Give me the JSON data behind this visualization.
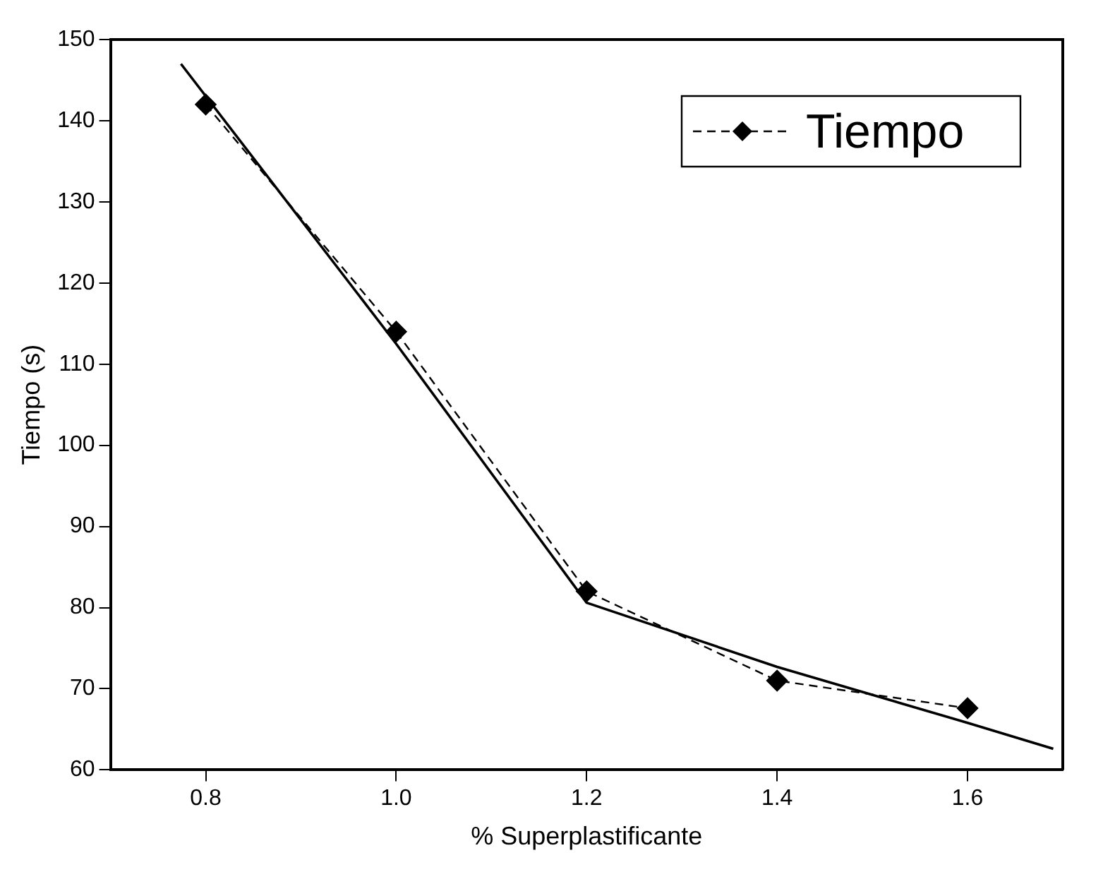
{
  "chart_data": {
    "type": "line",
    "xlabel": "% Superplastificante",
    "ylabel": "Tiempo (s)",
    "xlim": [
      0.7,
      1.7
    ],
    "xticks": [
      0.8,
      {
        "value": 1.0,
        "label": "1.0"
      },
      1.2,
      1.4,
      1.6
    ],
    "ylim": [
      60,
      150
    ],
    "yticks": [
      60,
      70,
      80,
      90,
      100,
      110,
      120,
      130,
      140,
      150
    ],
    "grid": false,
    "legend": "top right",
    "series": [
      {
        "name": "Tiempo",
        "color": "#000000",
        "x": [
          0.8,
          1.0,
          1.2,
          1.4,
          1.6
        ],
        "values": [
          142,
          114,
          82,
          71,
          67.6
        ],
        "marker": "diamond",
        "line_style": "dashed"
      },
      {
        "type": "line",
        "color": "#000000",
        "x": [
          0.774,
          1.0,
          1.2,
          1.4,
          1.6,
          1.69
        ],
        "values": [
          147,
          112.5,
          80.6,
          72.7,
          65.8,
          62.6
        ],
        "marker": "none",
        "line_style": "solid"
      }
    ]
  }
}
